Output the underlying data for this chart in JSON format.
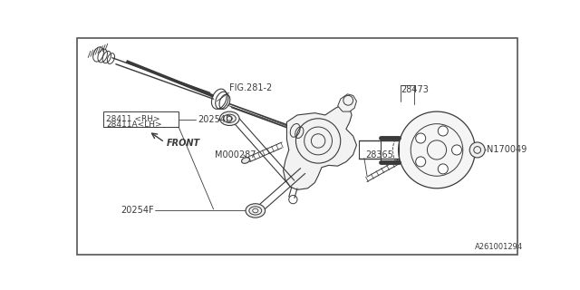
{
  "bg_color": "#ffffff",
  "line_color": "#3a3a3a",
  "border_color": "#555555",
  "labels": {
    "fig": "FIG.281-2",
    "front": "FRONT",
    "m000287": "M000287",
    "28411rh": "28411 <RH>",
    "28411alh": "28411A<LH>",
    "20254d": "20254D",
    "20254f": "20254F",
    "28473": "28473",
    "28365": "28365",
    "n170049": "N170049",
    "corner": "A261001294"
  },
  "fontsize": 7,
  "small_fontsize": 6
}
